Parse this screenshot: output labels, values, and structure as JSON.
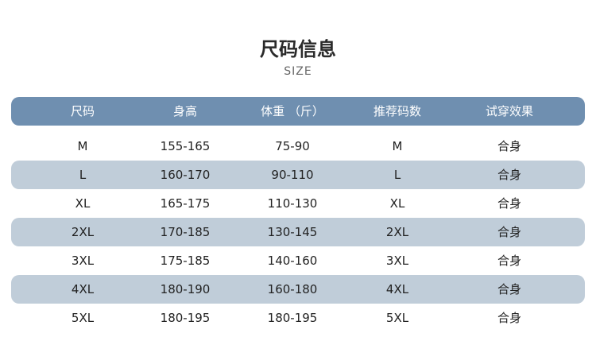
{
  "title": "尺码信息",
  "subtitle": "SIZE",
  "colors": {
    "header": "#6f8fb0",
    "stripe": "#c0cdd9"
  },
  "headers": [
    "尺码",
    "身高",
    "体重 （斤）",
    "推荐码数",
    "试穿效果"
  ],
  "rows": [
    [
      "M",
      "155-165",
      "75-90",
      "M",
      "合身"
    ],
    [
      "L",
      "160-170",
      "90-110",
      "L",
      "合身"
    ],
    [
      "XL",
      "165-175",
      "110-130",
      "XL",
      "合身"
    ],
    [
      "2XL",
      "170-185",
      "130-145",
      "2XL",
      "合身"
    ],
    [
      "3XL",
      "175-185",
      "140-160",
      "3XL",
      "合身"
    ],
    [
      "4XL",
      "180-190",
      "160-180",
      "4XL",
      "合身"
    ],
    [
      "5XL",
      "180-195",
      "180-195",
      "5XL",
      "合身"
    ]
  ]
}
